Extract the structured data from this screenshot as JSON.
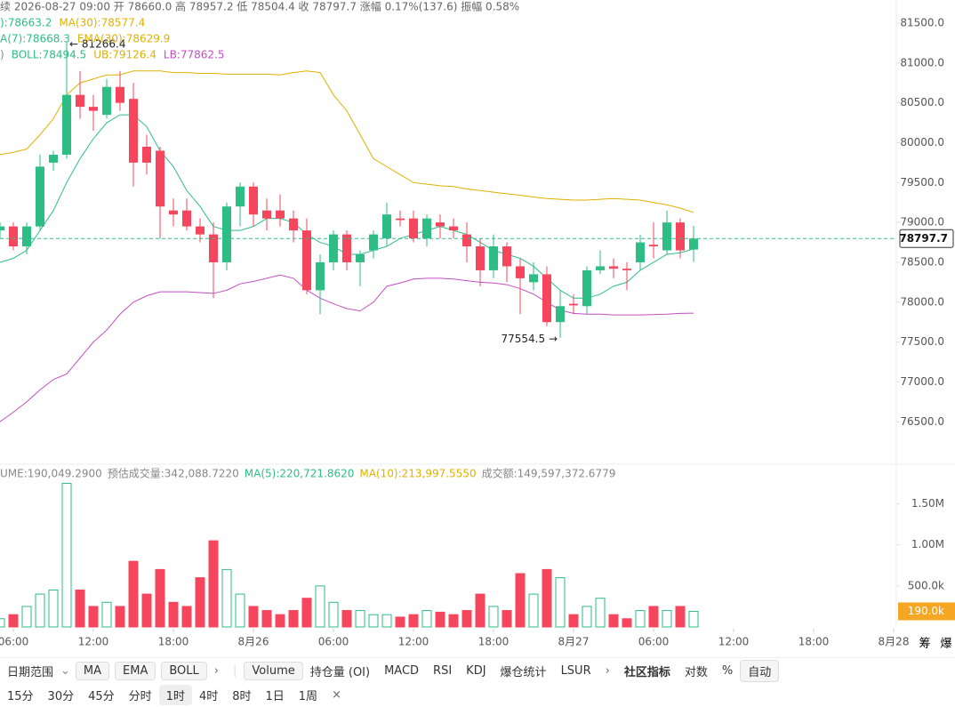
{
  "header": {
    "ohlc": "续 2026-08-27 09:00 开 78660.0 高 78957.2 低 78504.4 收 78797.7 涨幅 0.17%(137.6) 振幅 0.58%",
    "legend": [
      [
        {
          "text": "):78663.2",
          "color": "#2ebd85"
        },
        {
          "text": "MA(30):78577.4",
          "color": "#e0b100"
        }
      ],
      [
        {
          "text": "A(7):78668.3",
          "color": "#2ebd85"
        },
        {
          "text": "EMA(30):78629.9",
          "color": "#e0b100"
        }
      ],
      [
        {
          "text": ")",
          "color": "#888"
        },
        {
          "text": "BOLL:78494.5",
          "color": "#2ebd85"
        },
        {
          "text": "UB:79126.4",
          "color": "#e0b100"
        },
        {
          "text": "LB:77862.5",
          "color": "#c34fc3"
        }
      ]
    ],
    "volume_legend": [
      {
        "text": "UME:190,049.2900",
        "color": "#888"
      },
      {
        "text": "预估成交量:342,088.7220",
        "color": "#888"
      },
      {
        "text": "MA(5):220,721.8620",
        "color": "#2ebd85"
      },
      {
        "text": "MA(10):213,997.5550",
        "color": "#e0b100"
      },
      {
        "text": "成交额:149,597,372.6779",
        "color": "#888"
      }
    ]
  },
  "chart_data": {
    "type": "candlestick",
    "up_color": "#2ebd85",
    "down_color": "#f6465d",
    "open": [
      78900,
      78950,
      78700,
      78950,
      79750,
      79850,
      80600,
      80450,
      80350,
      80700,
      80550,
      79950,
      79900,
      79150,
      79150,
      78950,
      78850,
      78500,
      79200,
      79450,
      79150,
      79150,
      79050,
      78900,
      78150,
      78500,
      78850,
      78500,
      78650,
      78800,
      79050,
      79050,
      78800,
      79000,
      78950,
      78850,
      78700,
      78400,
      78700,
      78450,
      78250,
      78350,
      77750,
      77980,
      77950,
      78400,
      78450,
      78420,
      78500,
      78720,
      78650,
      79000,
      78660
    ],
    "high": [
      79000,
      79000,
      79000,
      79850,
      79900,
      81266.4,
      80900,
      80600,
      80800,
      80900,
      80750,
      80100,
      79950,
      79300,
      79300,
      79050,
      79000,
      79250,
      79500,
      79500,
      79300,
      79350,
      79150,
      79050,
      78600,
      78900,
      78900,
      78650,
      78900,
      79250,
      79150,
      79150,
      79100,
      79100,
      79050,
      79000,
      78800,
      78850,
      78750,
      78550,
      78500,
      78450,
      78150,
      78100,
      78450,
      78650,
      78550,
      78500,
      78850,
      79000,
      79150,
      79050,
      78957.2
    ],
    "low": [
      78800,
      78650,
      78600,
      78900,
      79650,
      79800,
      80300,
      80150,
      80300,
      80400,
      79450,
      79600,
      78800,
      78950,
      78900,
      78750,
      78050,
      78400,
      78950,
      78950,
      78900,
      78950,
      78750,
      78100,
      77850,
      78400,
      78400,
      78200,
      78550,
      78700,
      78950,
      78750,
      78700,
      78800,
      78800,
      78500,
      78200,
      78300,
      78250,
      77850,
      78150,
      77700,
      77554.5,
      77850,
      77850,
      78350,
      78300,
      78150,
      78400,
      78550,
      78600,
      78550,
      78504.4
    ],
    "close": [
      78950,
      78700,
      78950,
      79700,
      79850,
      80600,
      80450,
      80400,
      80700,
      80500,
      79750,
      79750,
      79200,
      79100,
      78950,
      78850,
      78500,
      79200,
      79450,
      79100,
      79050,
      79050,
      78900,
      78150,
      78500,
      78850,
      78500,
      78600,
      78850,
      79100,
      79030,
      78800,
      79050,
      78950,
      78900,
      78700,
      78400,
      78700,
      78450,
      78300,
      78350,
      77750,
      77950,
      77960,
      78400,
      78450,
      78420,
      78400,
      78750,
      78700,
      79000,
      78650,
      78797.7
    ],
    "volume": [
      100000,
      150000,
      250000,
      400000,
      450000,
      1750000,
      450000,
      250000,
      300000,
      250000,
      800000,
      400000,
      700000,
      300000,
      250000,
      600000,
      1050000,
      700000,
      400000,
      250000,
      200000,
      150000,
      200000,
      350000,
      500000,
      300000,
      200000,
      200000,
      150000,
      150000,
      120000,
      150000,
      200000,
      180000,
      150000,
      200000,
      400000,
      250000,
      200000,
      650000,
      400000,
      700000,
      600000,
      150000,
      250000,
      350000,
      150000,
      100000,
      200000,
      250000,
      200000,
      250000,
      190000
    ],
    "lines": [
      {
        "name": "UB",
        "color": "#e0b100",
        "values": [
          79850,
          79880,
          79920,
          80100,
          80300,
          80600,
          80750,
          80800,
          80850,
          80850,
          80900,
          80900,
          80900,
          80880,
          80880,
          80870,
          80870,
          80860,
          80860,
          80860,
          80860,
          80850,
          80880,
          80900,
          80880,
          80600,
          80400,
          80100,
          79800,
          79700,
          79600,
          79500,
          79480,
          79460,
          79450,
          79420,
          79400,
          79380,
          79360,
          79340,
          79320,
          79300,
          79290,
          79280,
          79280,
          79290,
          79300,
          79290,
          79280,
          79250,
          79220,
          79180,
          79126.4
        ]
      },
      {
        "name": "LB",
        "color": "#c34fc3",
        "values": [
          76500,
          76620,
          76750,
          76900,
          77030,
          77100,
          77300,
          77500,
          77650,
          77850,
          78000,
          78080,
          78130,
          78130,
          78130,
          78120,
          78110,
          78150,
          78230,
          78260,
          78300,
          78340,
          78300,
          78150,
          78050,
          77980,
          77920,
          77890,
          78000,
          78200,
          78240,
          78290,
          78300,
          78300,
          78290,
          78270,
          78250,
          78240,
          78220,
          78170,
          78100,
          78000,
          77900,
          77860,
          77850,
          77850,
          77840,
          77840,
          77840,
          77845,
          77850,
          77860,
          77862.5
        ]
      },
      {
        "name": "MA(7)",
        "color": "#2ebd85",
        "values": [
          78500,
          78550,
          78650,
          78900,
          79150,
          79500,
          79800,
          80050,
          80250,
          80350,
          80350,
          80200,
          79900,
          79700,
          79400,
          79200,
          78950,
          78900,
          78900,
          78950,
          79050,
          79050,
          79000,
          78850,
          78750,
          78700,
          78600,
          78600,
          78650,
          78700,
          78800,
          78850,
          78900,
          78950,
          78900,
          78850,
          78750,
          78650,
          78600,
          78550,
          78450,
          78300,
          78150,
          78050,
          78050,
          78100,
          78200,
          78250,
          78400,
          78500,
          78600,
          78620,
          78668.3
        ]
      }
    ],
    "ylim": [
      75990,
      81790
    ],
    "yticks": [
      {
        "value": 81500,
        "label": "81500.0"
      },
      {
        "value": 81000,
        "label": "81000.0"
      },
      {
        "value": 80500,
        "label": "80500.0"
      },
      {
        "value": 80000,
        "label": "80000.0"
      },
      {
        "value": 79500,
        "label": "79500.0"
      },
      {
        "value": 79000,
        "label": "79000.0"
      },
      {
        "value": 78500,
        "label": "78500.0"
      },
      {
        "value": 78000,
        "label": "78000.0"
      },
      {
        "value": 77500,
        "label": "77500.0"
      },
      {
        "value": 77000,
        "label": "77000.0"
      },
      {
        "value": 76500,
        "label": "76500.0"
      }
    ],
    "last_price": {
      "value": 78797.7,
      "label": "78797.7"
    },
    "high_label": {
      "value": 81266.4,
      "label": "← 81266.4"
    },
    "low_label": {
      "value": 77554.5,
      "label": "77554.5 →"
    },
    "vlim": [
      0,
      1950000
    ],
    "vticks": [
      {
        "value": 1500000,
        "label": "1.50M"
      },
      {
        "value": 1000000,
        "label": "1.00M"
      },
      {
        "value": 500000,
        "label": "500.0k"
      }
    ],
    "last_volume": {
      "value": 190000,
      "label": "190.0k"
    },
    "xticks": [
      {
        "value": 1,
        "label": "06:00"
      },
      {
        "value": 7,
        "label": "12:00"
      },
      {
        "value": 13,
        "label": "18:00"
      },
      {
        "value": 19,
        "label": "8月26"
      },
      {
        "value": 25,
        "label": "06:00"
      },
      {
        "value": 31,
        "label": "12:00"
      },
      {
        "value": 37,
        "label": "18:00"
      },
      {
        "value": 43,
        "label": "8月27"
      },
      {
        "value": 49,
        "label": "06:00"
      },
      {
        "value": 55,
        "label": "12:00"
      },
      {
        "value": 61,
        "label": "18:00"
      },
      {
        "value": 67,
        "label": "8月28"
      }
    ]
  },
  "side_labels": [
    "筹",
    "爆"
  ],
  "toolbar": {
    "row1": [
      "日期范围",
      "MA",
      "EMA",
      "BOLL",
      "Volume",
      "持仓量 (OI)",
      "MACD",
      "RSI",
      "KDJ",
      "爆仓统计",
      "LSUR",
      "社区指标",
      "对数",
      "%",
      "自动"
    ],
    "row2": [
      "15分",
      "30分",
      "45分",
      "分时",
      "1时",
      "4时",
      "8时",
      "1日",
      "1周"
    ]
  }
}
